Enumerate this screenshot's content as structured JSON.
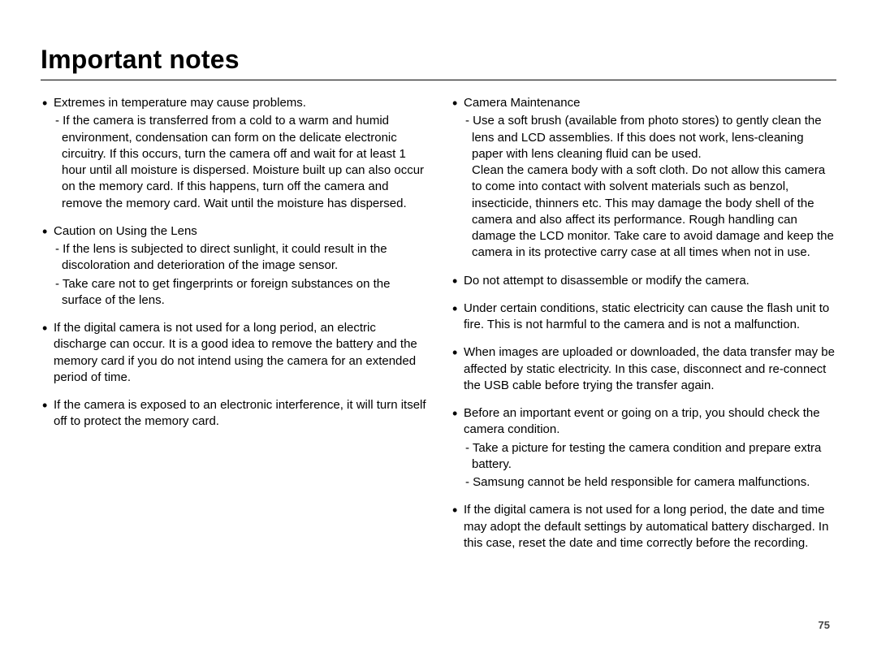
{
  "title": "Important notes",
  "page_number": "75",
  "colors": {
    "text": "#000000",
    "page_num": "#444444",
    "rule": "#000000",
    "background": "#ffffff"
  },
  "left_column": [
    {
      "lead": "Extremes in temperature may cause problems.",
      "subs": [
        "If the camera is transferred from a cold to a warm and humid environment, condensation can form on the delicate electronic circuitry. If this occurs, turn the camera off and wait for at least 1 hour until all moisture is dispersed. Moisture built up can also occur on the memory card. If this happens, turn off the camera and remove the memory card. Wait until the moisture has dispersed."
      ]
    },
    {
      "lead": "Caution on Using the Lens",
      "subs": [
        "If the lens is subjected to direct sunlight, it could result in the discoloration and deterioration of the image sensor.",
        "Take care not to get fingerprints or foreign substances on the surface of the lens."
      ]
    },
    {
      "lead": "If the digital camera is not used for a long period, an electric discharge can occur. It is a good idea to remove the battery and the memory card if you do not intend using the camera for an extended period of time.",
      "subs": []
    },
    {
      "lead": "If the camera is exposed to an electronic interference, it will turn itself off to protect the memory card.",
      "subs": []
    }
  ],
  "right_column": [
    {
      "lead": "Camera Maintenance",
      "subs": [
        "Use a soft brush (available from photo stores) to gently clean the lens and LCD assemblies. If this does not work, lens-cleaning paper with lens cleaning fluid can be used."
      ],
      "cont": "Clean the camera body with a soft cloth. Do not allow this camera to come into contact with solvent materials such as benzol, insecticide, thinners etc. This may damage the body shell of the camera and also affect its performance. Rough handling can damage the LCD monitor. Take care to avoid damage and keep the camera in its protective carry case at all times when not in use."
    },
    {
      "lead": "Do not attempt to disassemble or modify the camera.",
      "subs": []
    },
    {
      "lead": "Under certain conditions, static electricity can cause the flash unit to fire. This is not harmful to the camera and is not a malfunction.",
      "subs": []
    },
    {
      "lead": "When images are uploaded or downloaded, the data transfer may be affected by static electricity. In this case, disconnect and re-connect the USB cable before trying the transfer again.",
      "subs": []
    },
    {
      "lead": "Before an important event or going on a trip, you should check the camera condition.",
      "subs": [
        "Take a picture for testing the camera condition and prepare extra battery.",
        "Samsung cannot be held responsible for camera malfunctions."
      ]
    },
    {
      "lead": "If the digital camera is not used for a long period, the date and time may adopt the default settings by automatical battery discharged. In this case, reset the date and time correctly before the recording.",
      "subs": []
    }
  ]
}
